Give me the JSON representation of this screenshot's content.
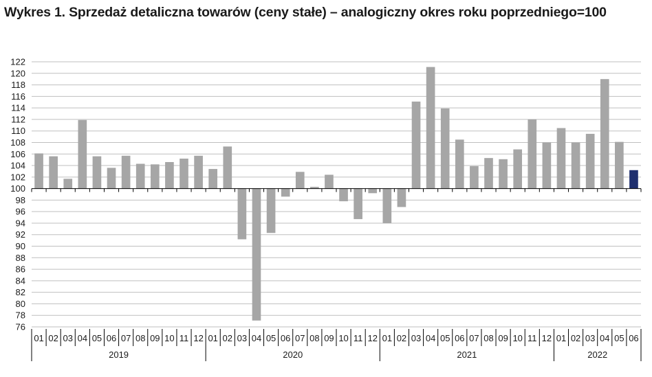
{
  "title": "Wykres 1. Sprzedaż detaliczna towarów (ceny stałe) – analogiczny okres roku poprzedniego=100",
  "colors": {
    "bar": "#a6a6a6",
    "bar_highlight": "#1f2f6e",
    "grid": "#bfbfbf",
    "axis": "#000000"
  },
  "chart_data": {
    "type": "bar",
    "title": "Wykres 1. Sprzedaż detaliczna towarów (ceny stałe) – analogiczny okres roku poprzedniego=100",
    "xlabel": "",
    "ylabel": "",
    "baseline": 100,
    "ylim": [
      76,
      122
    ],
    "yticks": [
      76,
      78,
      80,
      82,
      84,
      86,
      88,
      90,
      92,
      94,
      96,
      98,
      100,
      102,
      104,
      106,
      108,
      110,
      112,
      114,
      116,
      118,
      120,
      122
    ],
    "grid": true,
    "categories": [
      "01",
      "02",
      "03",
      "04",
      "05",
      "06",
      "07",
      "08",
      "09",
      "10",
      "11",
      "12",
      "01",
      "02",
      "03",
      "04",
      "05",
      "06",
      "07",
      "08",
      "09",
      "10",
      "11",
      "12",
      "01",
      "02",
      "03",
      "04",
      "05",
      "06",
      "07",
      "08",
      "09",
      "10",
      "11",
      "12",
      "01",
      "02",
      "03",
      "04",
      "05",
      "06"
    ],
    "years": [
      {
        "label": "2019",
        "months": 12
      },
      {
        "label": "2020",
        "months": 12
      },
      {
        "label": "2021",
        "months": 12
      },
      {
        "label": "2022",
        "months": 6
      }
    ],
    "values": [
      106.1,
      105.6,
      101.7,
      111.9,
      105.6,
      103.6,
      105.7,
      104.3,
      104.2,
      104.6,
      105.2,
      105.7,
      103.4,
      107.3,
      91.2,
      77.1,
      92.3,
      98.6,
      102.9,
      100.3,
      102.4,
      97.8,
      94.7,
      99.2,
      94.0,
      96.8,
      115.1,
      121.1,
      113.9,
      108.5,
      103.9,
      105.3,
      105.1,
      106.8,
      112.0,
      108.0,
      110.5,
      108.0,
      109.5,
      119.0,
      108.1,
      103.2
    ],
    "highlight_index": 41
  }
}
